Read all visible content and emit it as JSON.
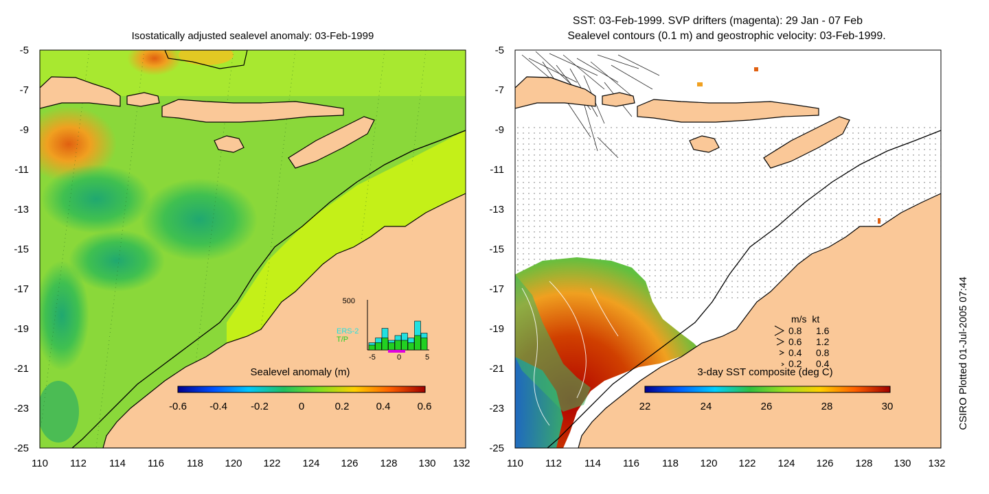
{
  "left_panel": {
    "title": "Isostatically adjusted sealevel anomaly: 03-Feb-1999",
    "colorbar": {
      "label": "Sealevel anomaly (m)",
      "ticks": [
        "-0.6",
        "-0.4",
        "-0.2",
        "0",
        "0.2",
        "0.4",
        "0.6"
      ],
      "colors": [
        "#00008f",
        "#0050ff",
        "#00c8ff",
        "#20c060",
        "#80e020",
        "#ffd000",
        "#ff6000",
        "#9f0000"
      ]
    },
    "histogram": {
      "ymax_label": "500",
      "xticks": [
        "-5",
        "0",
        "5"
      ],
      "legend": [
        {
          "name": "ERS-2",
          "color": "#22e0e0"
        },
        {
          "name": "T/P",
          "color": "#22d022"
        }
      ],
      "ers2": [
        0.15,
        0.25,
        0.45,
        0.2,
        0.3,
        0.35,
        0.25,
        0.6,
        0.35
      ],
      "tp": [
        0.1,
        0.15,
        0.25,
        0.15,
        0.2,
        0.2,
        0.15,
        0.3,
        0.25
      ]
    }
  },
  "right_panel": {
    "title_line1": "SST: 03-Feb-1999. SVP drifters (magenta): 29 Jan - 07 Feb",
    "title_line2": "Sealevel contours (0.1 m) and geostrophic velocity: 03-Feb-1999.",
    "velocity_legend": {
      "header": "m/s  kt",
      "rows": [
        {
          "ms": "0.8",
          "kt": "1.6"
        },
        {
          "ms": "0.6",
          "kt": "1.2"
        },
        {
          "ms": "0.4",
          "kt": "0.8"
        },
        {
          "ms": "0.2",
          "kt": "0.4"
        }
      ]
    },
    "colorbar": {
      "label": "3-day SST composite (deg C)",
      "ticks": [
        "22",
        "24",
        "26",
        "28",
        "30"
      ],
      "colors": [
        "#00008f",
        "#0060ff",
        "#00d0ff",
        "#30c040",
        "#a0e020",
        "#ffd000",
        "#ff6000",
        "#9f0000"
      ]
    }
  },
  "axes": {
    "x_ticks": [
      "110",
      "112",
      "114",
      "116",
      "118",
      "120",
      "122",
      "124",
      "126",
      "128",
      "130",
      "132"
    ],
    "y_ticks": [
      "-5",
      "-7",
      "-9",
      "-11",
      "-13",
      "-15",
      "-17",
      "-19",
      "-21",
      "-23",
      "-25"
    ],
    "xlim": [
      110,
      132
    ],
    "ylim": [
      -25,
      -5
    ]
  },
  "side_label": "CSIRO Plotted 01-Jul-2005 07:44",
  "colors": {
    "land": "#fac898",
    "ocean_green": "#80d840",
    "shelf_green": "#c0f020",
    "sst_red": "#a81000"
  }
}
